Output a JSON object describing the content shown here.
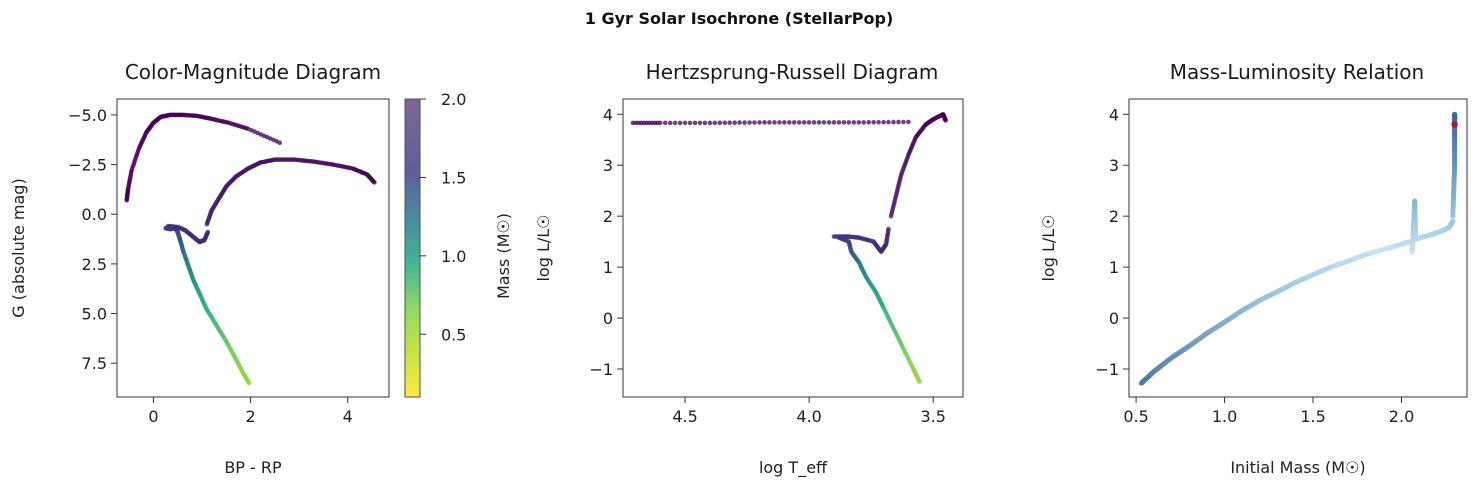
{
  "figure": {
    "suptitle": "1 Gyr Solar Isochrone (StellarPop)"
  },
  "colors": {
    "lowMass": "#fde725",
    "midMass": "#21918c",
    "highMass": "#440154"
  },
  "chart_data": [
    {
      "id": "cmd",
      "type": "scatter",
      "title": "Color-Magnitude Diagram",
      "xlabel": "BP - RP",
      "ylabel": "G (absolute mag)",
      "xlim": [
        -0.75,
        4.85
      ],
      "ylim": [
        9.2,
        -5.8
      ],
      "y_inverted": true,
      "xticks": [
        0,
        2,
        4
      ],
      "yticks": [
        -5.0,
        -2.5,
        0.0,
        2.5,
        5.0,
        7.5
      ],
      "colorbar": {
        "label": "Mass (M☉)",
        "range": [
          0.1,
          2.0
        ],
        "ticks": [
          0.5,
          1.0,
          1.5,
          2.0
        ],
        "colormap": "viridis_r"
      },
      "series": [
        {
          "segment": "main-sequence",
          "points": [
            [
              1.97,
              8.5
            ],
            [
              1.85,
              8.0
            ],
            [
              1.7,
              7.3
            ],
            [
              1.5,
              6.4
            ],
            [
              1.3,
              5.6
            ],
            [
              1.1,
              4.8
            ],
            [
              0.95,
              4.0
            ],
            [
              0.82,
              3.3
            ],
            [
              0.72,
              2.6
            ],
            [
              0.62,
              1.9
            ],
            [
              0.55,
              1.3
            ],
            [
              0.5,
              0.9
            ],
            [
              0.45,
              0.7
            ],
            [
              0.35,
              0.75
            ],
            [
              0.25,
              0.7
            ]
          ],
          "masses": [
            0.55,
            0.6,
            0.68,
            0.76,
            0.84,
            0.92,
            1.0,
            1.1,
            1.2,
            1.32,
            1.42,
            1.5,
            1.56,
            1.6,
            1.62
          ]
        },
        {
          "segment": "turnoff-hook",
          "points": [
            [
              0.3,
              0.6
            ],
            [
              0.5,
              0.65
            ],
            [
              0.65,
              0.8
            ],
            [
              0.8,
              1.1
            ],
            [
              0.95,
              1.4
            ],
            [
              1.05,
              1.3
            ],
            [
              1.12,
              0.9
            ]
          ],
          "masses": [
            1.64,
            1.66,
            1.68,
            1.7,
            1.72,
            1.74,
            1.76
          ]
        },
        {
          "segment": "giant-branch",
          "points": [
            [
              1.1,
              0.5
            ],
            [
              1.2,
              -0.2
            ],
            [
              1.35,
              -0.8
            ],
            [
              1.5,
              -1.4
            ],
            [
              1.7,
              -1.9
            ],
            [
              1.95,
              -2.3
            ],
            [
              2.2,
              -2.6
            ],
            [
              2.5,
              -2.75
            ],
            [
              2.9,
              -2.75
            ],
            [
              3.3,
              -2.65
            ],
            [
              3.7,
              -2.5
            ],
            [
              4.1,
              -2.3
            ],
            [
              4.4,
              -2.0
            ],
            [
              4.55,
              -1.6
            ]
          ],
          "masses": [
            1.8,
            1.82,
            1.84,
            1.86,
            1.88,
            1.9,
            1.92,
            1.94,
            1.96,
            1.97,
            1.98,
            1.99,
            2.0,
            2.0
          ]
        },
        {
          "segment": "post-agb",
          "points": [
            [
              -0.55,
              -0.7
            ],
            [
              -0.52,
              -1.3
            ],
            [
              -0.45,
              -2.2
            ],
            [
              -0.3,
              -3.3
            ],
            [
              -0.15,
              -4.1
            ],
            [
              0.0,
              -4.6
            ],
            [
              0.15,
              -4.9
            ],
            [
              0.35,
              -5.0
            ],
            [
              0.6,
              -5.0
            ],
            [
              0.9,
              -4.95
            ],
            [
              1.2,
              -4.8
            ],
            [
              1.55,
              -4.6
            ],
            [
              1.95,
              -4.3
            ],
            [
              2.6,
              -3.6
            ]
          ],
          "masses": [
            2.0,
            2.0,
            2.0,
            2.0,
            2.0,
            2.0,
            2.0,
            2.0,
            2.0,
            2.0,
            2.0,
            2.0,
            2.0,
            2.0
          ]
        }
      ]
    },
    {
      "id": "hrd",
      "type": "scatter",
      "title": "Hertzsprung-Russell Diagram",
      "xlabel": "log T_eff",
      "ylabel": "log L/L☉",
      "xlim": [
        4.75,
        3.38
      ],
      "ylim": [
        -1.55,
        4.3
      ],
      "x_inverted": true,
      "xticks": [
        4.5,
        4.0,
        3.5
      ],
      "yticks": [
        -1,
        0,
        1,
        2,
        3,
        4
      ],
      "series": [
        {
          "segment": "main-sequence",
          "points": [
            [
              3.555,
              -1.25
            ],
            [
              3.58,
              -1.0
            ],
            [
              3.62,
              -0.6
            ],
            [
              3.66,
              -0.2
            ],
            [
              3.7,
              0.2
            ],
            [
              3.73,
              0.5
            ],
            [
              3.77,
              0.8
            ],
            [
              3.8,
              1.1
            ],
            [
              3.83,
              1.3
            ],
            [
              3.84,
              1.5
            ],
            [
              3.88,
              1.58
            ]
          ],
          "masses": [
            0.55,
            0.62,
            0.72,
            0.82,
            0.92,
            1.02,
            1.14,
            1.28,
            1.4,
            1.52,
            1.6
          ]
        },
        {
          "segment": "turnoff-hook",
          "points": [
            [
              3.9,
              1.6
            ],
            [
              3.85,
              1.6
            ],
            [
              3.8,
              1.58
            ],
            [
              3.74,
              1.5
            ],
            [
              3.71,
              1.3
            ],
            [
              3.69,
              1.45
            ],
            [
              3.68,
              1.75
            ]
          ],
          "masses": [
            1.62,
            1.66,
            1.68,
            1.7,
            1.72,
            1.74,
            1.76
          ]
        },
        {
          "segment": "giant-branch",
          "points": [
            [
              3.67,
              2.0
            ],
            [
              3.65,
              2.4
            ],
            [
              3.63,
              2.8
            ],
            [
              3.6,
              3.2
            ],
            [
              3.57,
              3.55
            ],
            [
              3.53,
              3.8
            ],
            [
              3.5,
              3.9
            ],
            [
              3.46,
              4.0
            ],
            [
              3.45,
              3.88
            ]
          ],
          "masses": [
            1.8,
            1.84,
            1.88,
            1.92,
            1.96,
            1.98,
            1.99,
            2.0,
            2.0
          ]
        },
        {
          "segment": "post-agb",
          "points": [
            [
              4.71,
              3.83
            ],
            [
              4.6,
              3.83
            ],
            [
              4.4,
              3.83
            ],
            [
              4.2,
              3.84
            ],
            [
              4.0,
              3.84
            ],
            [
              3.8,
              3.84
            ],
            [
              3.6,
              3.85
            ]
          ],
          "masses": [
            2.0,
            2.0,
            2.0,
            2.0,
            2.0,
            2.0,
            2.0
          ]
        }
      ]
    },
    {
      "id": "mlr",
      "type": "scatter",
      "title": "Mass-Luminosity Relation",
      "xlabel": "Initial Mass (M☉)",
      "ylabel": "log L/L☉",
      "xlim": [
        0.46,
        2.37
      ],
      "ylim": [
        -1.55,
        4.3
      ],
      "xticks": [
        0.5,
        1.0,
        1.5,
        2.0
      ],
      "yticks": [
        -1,
        0,
        1,
        2,
        3,
        4
      ],
      "colormap": "Blues (luminosity)",
      "series": [
        {
          "segment": "main-sequence",
          "points": [
            [
              0.53,
              -1.28
            ],
            [
              0.6,
              -1.05
            ],
            [
              0.7,
              -0.78
            ],
            [
              0.8,
              -0.55
            ],
            [
              0.9,
              -0.3
            ],
            [
              1.0,
              -0.08
            ],
            [
              1.1,
              0.15
            ],
            [
              1.2,
              0.35
            ],
            [
              1.3,
              0.52
            ],
            [
              1.4,
              0.7
            ],
            [
              1.5,
              0.85
            ],
            [
              1.6,
              1.0
            ],
            [
              1.7,
              1.12
            ],
            [
              1.8,
              1.25
            ],
            [
              1.9,
              1.35
            ],
            [
              2.0,
              1.45
            ],
            [
              2.05,
              1.5
            ]
          ]
        },
        {
          "segment": "turnoff-jump",
          "points": [
            [
              2.06,
              1.3
            ],
            [
              2.065,
              1.6
            ],
            [
              2.07,
              1.9
            ],
            [
              2.075,
              2.3
            ],
            [
              2.08,
              1.6
            ]
          ]
        },
        {
          "segment": "subgiant",
          "points": [
            [
              2.08,
              1.55
            ],
            [
              2.15,
              1.62
            ],
            [
              2.22,
              1.7
            ],
            [
              2.27,
              1.78
            ],
            [
              2.29,
              1.9
            ]
          ]
        },
        {
          "segment": "giant-branch",
          "points": [
            [
              2.29,
              2.0
            ],
            [
              2.295,
              2.5
            ],
            [
              2.3,
              3.0
            ],
            [
              2.3,
              3.5
            ],
            [
              2.3,
              3.85
            ],
            [
              2.3,
              4.0
            ]
          ]
        }
      ],
      "highlight": {
        "x": 2.3,
        "y": 3.8,
        "color": "#b2182b"
      }
    }
  ]
}
